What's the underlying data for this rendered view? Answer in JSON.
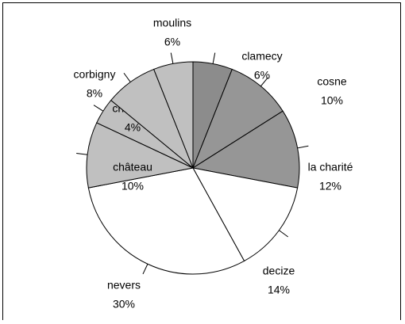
{
  "chart_data": {
    "type": "pie",
    "categories": [
      "clamecy",
      "cosne",
      "la charité",
      "decize",
      "nevers",
      "château",
      "chatillon",
      "corbigny",
      "moulins"
    ],
    "values": [
      6,
      10,
      12,
      14,
      30,
      10,
      4,
      8,
      6
    ],
    "value_labels": [
      "6%",
      "10%",
      "12%",
      "14%",
      "30%",
      "10%",
      "4%",
      "8%",
      "6%"
    ],
    "colors": [
      "#8c8c8c",
      "#969696",
      "#969696",
      "#ffffff",
      "#ffffff",
      "#c0c0c0",
      "#c0c0c0",
      "#c0c0c0",
      "#c0c0c0"
    ]
  }
}
